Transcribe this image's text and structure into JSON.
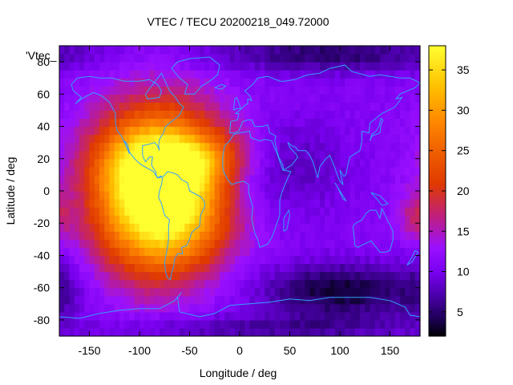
{
  "chart_data": {
    "type": "heatmap",
    "title": "VTEC / TECU 20200218_049.72000",
    "xlabel": "Longitude / deg",
    "ylabel": "Latitude / deg",
    "legend_label": "'Vtec_",
    "xlim": [
      -180,
      180
    ],
    "ylim": [
      -90,
      90
    ],
    "x_ticks": [
      -150,
      -100,
      -50,
      0,
      50,
      100,
      150
    ],
    "y_ticks": [
      -80,
      -60,
      -40,
      -20,
      0,
      20,
      40,
      60,
      80
    ],
    "colorbar": {
      "range": [
        2,
        38
      ],
      "ticks": [
        5,
        10,
        15,
        20,
        25,
        30,
        35
      ],
      "palette": [
        "#000000",
        "#1a0050",
        "#4a00a8",
        "#7a00f0",
        "#9a10ff",
        "#c0207a",
        "#e03a00",
        "#f06000",
        "#ff8c00",
        "#ffc000",
        "#ffff30"
      ],
      "palette_stops": [
        2,
        4,
        7,
        10,
        13,
        17,
        21,
        25,
        29,
        33,
        38
      ]
    },
    "grid_resolution": {
      "dlon": 5,
      "dlat": 5
    },
    "blobs": [
      {
        "name": "background",
        "value": 11
      },
      {
        "lon": -75,
        "lat": 5,
        "slon": 45,
        "slat": 32,
        "amp": 27
      },
      {
        "lon": -105,
        "lat": -5,
        "slon": 35,
        "slat": 35,
        "amp": 8
      },
      {
        "lon": -60,
        "lat": 20,
        "slon": 55,
        "slat": 12,
        "amp": 6
      },
      {
        "lon": -60,
        "lat": -25,
        "slon": 35,
        "slat": 22,
        "amp": 6
      },
      {
        "lon": -30,
        "lat": 15,
        "slon": 30,
        "slat": 12,
        "amp": 5
      },
      {
        "lon": -10,
        "lat": 10,
        "slon": 25,
        "slat": 10,
        "amp": -4
      },
      {
        "lon": 40,
        "lat": 15,
        "slon": 45,
        "slat": 20,
        "amp": -4
      },
      {
        "lon": 100,
        "lat": -62,
        "slon": 55,
        "slat": 12,
        "amp": -8
      },
      {
        "lon": 90,
        "lat": 85,
        "slon": 90,
        "slat": 8,
        "amp": -6
      },
      {
        "lon": 20,
        "lat": -85,
        "slon": 120,
        "slat": 6,
        "amp": -4
      },
      {
        "lon": 175,
        "lat": -15,
        "slon": 12,
        "slat": 10,
        "amp": 5
      },
      {
        "lon": -180,
        "lat": -60,
        "slon": 15,
        "slat": 15,
        "amp": -3
      }
    ]
  }
}
